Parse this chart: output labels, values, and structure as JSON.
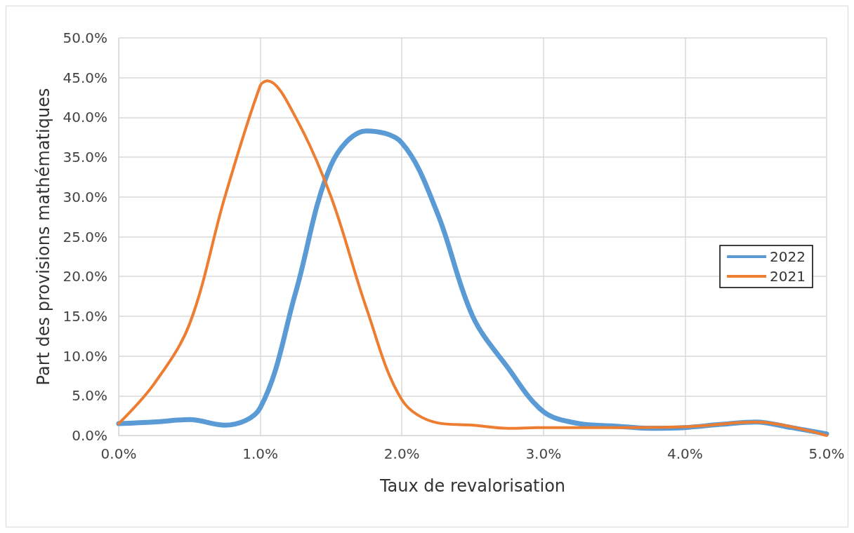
{
  "chart_data": {
    "type": "line",
    "xlabel": "Taux de revalorisation",
    "ylabel": "Part des provisions mathématiques",
    "series": [
      {
        "name": "2022",
        "color": "#5b9bd5",
        "x": [
          0,
          0.25,
          0.5,
          0.75,
          1.0,
          1.25,
          1.5,
          1.75,
          2.0,
          2.25,
          2.5,
          2.75,
          3.0,
          3.25,
          3.5,
          3.75,
          4.0,
          4.25,
          4.5,
          4.75,
          5.0
        ],
        "values": [
          1.5,
          1.7,
          2.0,
          1.3,
          3.5,
          18,
          34,
          38.3,
          36.8,
          28,
          15,
          8.5,
          3.0,
          1.5,
          1.2,
          0.9,
          1.0,
          1.4,
          1.7,
          1.0,
          0.2
        ]
      },
      {
        "name": "2021",
        "color": "#ed7d31",
        "x": [
          0,
          0.25,
          0.5,
          0.75,
          1.0,
          1.05,
          1.25,
          1.5,
          1.75,
          2.0,
          2.25,
          2.5,
          2.75,
          3.0,
          3.5,
          4.0,
          4.5,
          5.0
        ],
        "values": [
          1.5,
          6.5,
          14,
          30,
          44,
          44.6,
          40,
          30,
          16,
          4.5,
          1.6,
          1.3,
          0.9,
          1.0,
          1.0,
          1.1,
          1.7,
          0
        ]
      }
    ],
    "xlim": [
      0,
      5
    ],
    "xticks": [
      {
        "value": 0,
        "label": "0.0%"
      },
      {
        "value": 1,
        "label": "1.0%"
      },
      {
        "value": 2,
        "label": "2.0%"
      },
      {
        "value": 3,
        "label": "3.0%"
      },
      {
        "value": 4,
        "label": "4.0%"
      },
      {
        "value": 5,
        "label": "5.0%"
      }
    ],
    "ylim": [
      0,
      50
    ],
    "yticks": [
      {
        "value": 0,
        "label": "0.0%"
      },
      {
        "value": 5,
        "label": "5.0%"
      },
      {
        "value": 10,
        "label": "10.0%"
      },
      {
        "value": 15,
        "label": "15.0%"
      },
      {
        "value": 20,
        "label": "20.0%"
      },
      {
        "value": 25,
        "label": "25.0%"
      },
      {
        "value": 30,
        "label": "30.0%"
      },
      {
        "value": 35,
        "label": "35.0%"
      },
      {
        "value": 40,
        "label": "40.0%"
      },
      {
        "value": 45,
        "label": "45.0%"
      },
      {
        "value": 50,
        "label": "50.0%"
      }
    ],
    "grid": true,
    "legend": "right",
    "marker": "none",
    "line_style": "solid"
  }
}
